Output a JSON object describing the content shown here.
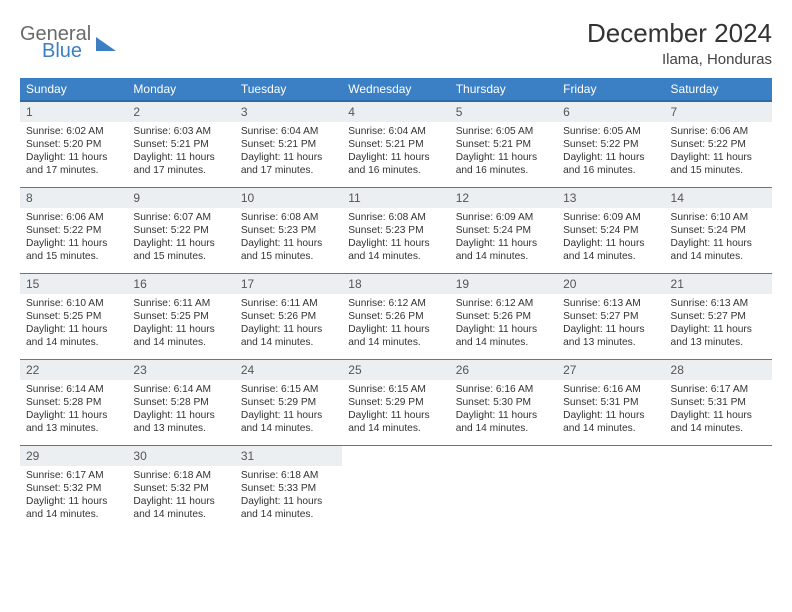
{
  "brand": {
    "general": "General",
    "blue": "Blue"
  },
  "title": "December 2024",
  "location": "Ilama, Honduras",
  "colors": {
    "header_bg": "#3b7fc4",
    "header_border": "#2f6aa8",
    "daynum_bg": "#eceff1",
    "text": "#333333",
    "logo_gray": "#6a6a6a",
    "logo_blue": "#3b7fc4"
  },
  "fonts": {
    "title_pt": 26,
    "location_pt": 15,
    "header_pt": 12,
    "daynum_pt": 12,
    "body_pt": 10.2
  },
  "day_headers": [
    "Sunday",
    "Monday",
    "Tuesday",
    "Wednesday",
    "Thursday",
    "Friday",
    "Saturday"
  ],
  "weeks": [
    [
      {
        "n": "1",
        "sr": "6:02 AM",
        "ss": "5:20 PM",
        "dl": "11 hours and 17 minutes."
      },
      {
        "n": "2",
        "sr": "6:03 AM",
        "ss": "5:21 PM",
        "dl": "11 hours and 17 minutes."
      },
      {
        "n": "3",
        "sr": "6:04 AM",
        "ss": "5:21 PM",
        "dl": "11 hours and 17 minutes."
      },
      {
        "n": "4",
        "sr": "6:04 AM",
        "ss": "5:21 PM",
        "dl": "11 hours and 16 minutes."
      },
      {
        "n": "5",
        "sr": "6:05 AM",
        "ss": "5:21 PM",
        "dl": "11 hours and 16 minutes."
      },
      {
        "n": "6",
        "sr": "6:05 AM",
        "ss": "5:22 PM",
        "dl": "11 hours and 16 minutes."
      },
      {
        "n": "7",
        "sr": "6:06 AM",
        "ss": "5:22 PM",
        "dl": "11 hours and 15 minutes."
      }
    ],
    [
      {
        "n": "8",
        "sr": "6:06 AM",
        "ss": "5:22 PM",
        "dl": "11 hours and 15 minutes."
      },
      {
        "n": "9",
        "sr": "6:07 AM",
        "ss": "5:22 PM",
        "dl": "11 hours and 15 minutes."
      },
      {
        "n": "10",
        "sr": "6:08 AM",
        "ss": "5:23 PM",
        "dl": "11 hours and 15 minutes."
      },
      {
        "n": "11",
        "sr": "6:08 AM",
        "ss": "5:23 PM",
        "dl": "11 hours and 14 minutes."
      },
      {
        "n": "12",
        "sr": "6:09 AM",
        "ss": "5:24 PM",
        "dl": "11 hours and 14 minutes."
      },
      {
        "n": "13",
        "sr": "6:09 AM",
        "ss": "5:24 PM",
        "dl": "11 hours and 14 minutes."
      },
      {
        "n": "14",
        "sr": "6:10 AM",
        "ss": "5:24 PM",
        "dl": "11 hours and 14 minutes."
      }
    ],
    [
      {
        "n": "15",
        "sr": "6:10 AM",
        "ss": "5:25 PM",
        "dl": "11 hours and 14 minutes."
      },
      {
        "n": "16",
        "sr": "6:11 AM",
        "ss": "5:25 PM",
        "dl": "11 hours and 14 minutes."
      },
      {
        "n": "17",
        "sr": "6:11 AM",
        "ss": "5:26 PM",
        "dl": "11 hours and 14 minutes."
      },
      {
        "n": "18",
        "sr": "6:12 AM",
        "ss": "5:26 PM",
        "dl": "11 hours and 14 minutes."
      },
      {
        "n": "19",
        "sr": "6:12 AM",
        "ss": "5:26 PM",
        "dl": "11 hours and 14 minutes."
      },
      {
        "n": "20",
        "sr": "6:13 AM",
        "ss": "5:27 PM",
        "dl": "11 hours and 13 minutes."
      },
      {
        "n": "21",
        "sr": "6:13 AM",
        "ss": "5:27 PM",
        "dl": "11 hours and 13 minutes."
      }
    ],
    [
      {
        "n": "22",
        "sr": "6:14 AM",
        "ss": "5:28 PM",
        "dl": "11 hours and 13 minutes."
      },
      {
        "n": "23",
        "sr": "6:14 AM",
        "ss": "5:28 PM",
        "dl": "11 hours and 13 minutes."
      },
      {
        "n": "24",
        "sr": "6:15 AM",
        "ss": "5:29 PM",
        "dl": "11 hours and 14 minutes."
      },
      {
        "n": "25",
        "sr": "6:15 AM",
        "ss": "5:29 PM",
        "dl": "11 hours and 14 minutes."
      },
      {
        "n": "26",
        "sr": "6:16 AM",
        "ss": "5:30 PM",
        "dl": "11 hours and 14 minutes."
      },
      {
        "n": "27",
        "sr": "6:16 AM",
        "ss": "5:31 PM",
        "dl": "11 hours and 14 minutes."
      },
      {
        "n": "28",
        "sr": "6:17 AM",
        "ss": "5:31 PM",
        "dl": "11 hours and 14 minutes."
      }
    ],
    [
      {
        "n": "29",
        "sr": "6:17 AM",
        "ss": "5:32 PM",
        "dl": "11 hours and 14 minutes."
      },
      {
        "n": "30",
        "sr": "6:18 AM",
        "ss": "5:32 PM",
        "dl": "11 hours and 14 minutes."
      },
      {
        "n": "31",
        "sr": "6:18 AM",
        "ss": "5:33 PM",
        "dl": "11 hours and 14 minutes."
      },
      null,
      null,
      null,
      null
    ]
  ],
  "labels": {
    "sunrise": "Sunrise:",
    "sunset": "Sunset:",
    "daylight": "Daylight:"
  }
}
